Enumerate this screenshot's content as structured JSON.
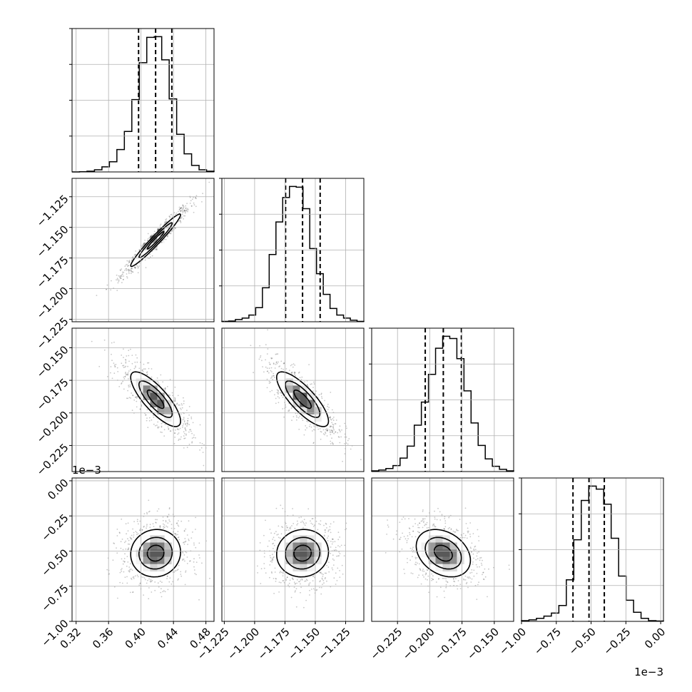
{
  "chart_data": {
    "type": "corner",
    "parameters": [
      {
        "id": "p1",
        "lim": [
          0.315,
          0.49
        ],
        "ticks": [
          0.32,
          0.36,
          0.4,
          0.44,
          0.48
        ],
        "tick_labels": [
          "0.32",
          "0.36",
          "0.40",
          "0.44",
          "0.48"
        ],
        "offset_label": "",
        "quantiles": [
          0.397,
          0.418,
          0.438
        ],
        "hist_counts": [
          0,
          0.3,
          1,
          3,
          7,
          14,
          31,
          56,
          100,
          151,
          186,
          187,
          155,
          101,
          52,
          25,
          9,
          3,
          1
        ]
      },
      {
        "id": "p2",
        "lim": [
          -1.227,
          -1.11
        ],
        "ticks": [
          -1.225,
          -1.2,
          -1.175,
          -1.15,
          -1.125
        ],
        "tick_labels": [
          "−1.225",
          "−1.200",
          "−1.175",
          "−1.150",
          "−1.125"
        ],
        "offset_label": "",
        "quantiles": [
          -1.1745,
          -1.1605,
          -1.146
        ],
        "hist_counts": [
          0.5,
          1,
          3,
          5,
          9,
          19,
          46,
          91,
          135,
          168,
          183,
          182,
          153,
          99,
          65,
          37,
          18,
          9,
          5,
          2,
          0.5
        ]
      },
      {
        "id": "p3",
        "lim": [
          -0.245,
          -0.135
        ],
        "ticks": [
          -0.225,
          -0.2,
          -0.175,
          -0.15
        ],
        "tick_labels": [
          "−0.225",
          "−0.200",
          "−0.175",
          "−0.150"
        ],
        "offset_label": "",
        "quantiles": [
          -0.2035,
          -0.1895,
          -0.1755
        ],
        "hist_counts": [
          1,
          2,
          4,
          8,
          18,
          34,
          62,
          93,
          130,
          165,
          181,
          178,
          151,
          108,
          65,
          35,
          17,
          7,
          3,
          1
        ]
      },
      {
        "id": "p4",
        "lim": [
          -1.0,
          0.02
        ],
        "ticks": [
          -1.0,
          -0.75,
          -0.5,
          -0.25,
          0.0
        ],
        "tick_labels": [
          "−1.00",
          "−0.75",
          "−0.50",
          "−0.25",
          "0.00"
        ],
        "offset_label": "1e−3",
        "quantiles": [
          -0.63,
          -0.515,
          -0.405
        ],
        "hist_counts": [
          1,
          2,
          4,
          7,
          11,
          21,
          55,
          108,
          160,
          179,
          175,
          155,
          110,
          60,
          28,
          12,
          4,
          1,
          0.5
        ]
      }
    ],
    "correlations": [
      {
        "row": 1,
        "col": 0,
        "rho": 0.97
      },
      {
        "row": 2,
        "col": 0,
        "rho": -0.8
      },
      {
        "row": 2,
        "col": 1,
        "rho": -0.8
      },
      {
        "row": 3,
        "col": 0,
        "rho": 0.05
      },
      {
        "row": 3,
        "col": 1,
        "rho": 0.05
      },
      {
        "row": 3,
        "col": 2,
        "rho": -0.3
      }
    ],
    "grid": true
  }
}
